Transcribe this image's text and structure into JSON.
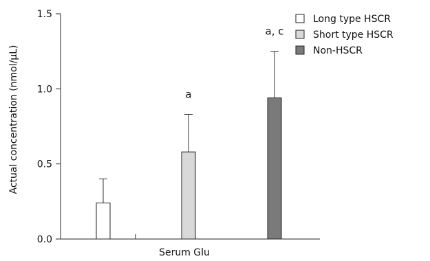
{
  "chart_data": {
    "type": "bar",
    "xlabel": "Serum Glu",
    "ylabel": "Actual concentration (nmol/μL)",
    "ylim": [
      0,
      1.5
    ],
    "yticks": [
      "0.0",
      "0.5",
      "1.0",
      "1.5"
    ],
    "series": [
      {
        "name": "Long type HSCR",
        "value": 0.24,
        "error": 0.16,
        "color": "#ffffff",
        "annotation": ""
      },
      {
        "name": "Short type HSCR",
        "value": 0.58,
        "error": 0.25,
        "color": "#d9d9d9",
        "annotation": "a"
      },
      {
        "name": "Non-HSCR",
        "value": 0.94,
        "error": 0.31,
        "color": "#7a7a7a",
        "annotation": "a, c"
      }
    ],
    "legend_position": "top-right",
    "grid": false
  }
}
